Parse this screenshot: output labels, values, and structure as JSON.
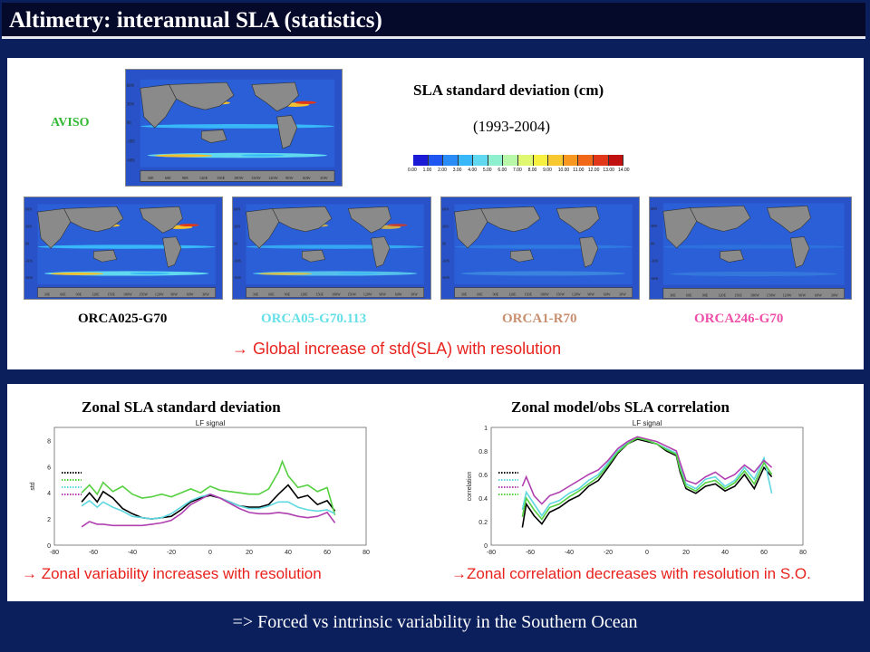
{
  "header": {
    "title": "Altimetry: interannual SLA (statistics)"
  },
  "top_panel": {
    "aviso_label": "AVISO",
    "map_title": "SLA standard deviation (cm)",
    "period": "(1993-2004)",
    "colorbar_ticks": [
      "0.00",
      "1.00",
      "2.00",
      "3.00",
      "4.00",
      "5.00",
      "6.00",
      "7.00",
      "8.00",
      "9.00",
      "10.00",
      "11.00",
      "12.00",
      "13.00",
      "14.00"
    ],
    "colorbar_colors": [
      "#1b1bd6",
      "#1f55f0",
      "#2a8cf6",
      "#38b8f8",
      "#5fd8f0",
      "#8ff0d0",
      "#b8f8a8",
      "#e0f870",
      "#f8f040",
      "#f8c830",
      "#f89820",
      "#f06818",
      "#e03818",
      "#c01010"
    ],
    "lat_ticks": [
      "60N",
      "30N",
      "0S",
      "-30S",
      "-60S"
    ],
    "lon_ticks": [
      "30E",
      "60E",
      "90E",
      "120E",
      "150E",
      "180W",
      "150W",
      "120W",
      "90W",
      "60W",
      "30W"
    ],
    "models": [
      {
        "name": "ORCA025-G70",
        "color": "#000000"
      },
      {
        "name": "ORCA05-G70.113",
        "color": "#66e0e8"
      },
      {
        "name": "ORCA1-R70",
        "color": "#c89070"
      },
      {
        "name": "ORCA246-G70",
        "color": "#ee4fa8"
      }
    ],
    "conclusion": "→ Global increase of std(SLA) with resolution"
  },
  "bottom_panel": {
    "left_title": "Zonal SLA standard deviation",
    "right_title": "Zonal model/obs SLA correlation",
    "left_conclusion": "→ Zonal variability increases with resolution",
    "right_conclusion": "→Zonal correlation decreases with resolution in S.O."
  },
  "footer": {
    "text": "=> Forced vs intrinsic variability in the Southern Ocean"
  },
  "chart_data": [
    {
      "type": "line",
      "title": "LF signal",
      "xlabel": "",
      "ylabel": "std",
      "xlim": [
        -80,
        80
      ],
      "ylim": [
        0,
        9
      ],
      "xticks": [
        -80,
        -60,
        -40,
        -20,
        0,
        20,
        40,
        60,
        80
      ],
      "yticks": [
        0,
        2,
        4,
        6,
        8
      ],
      "series_colors": [
        "#000000",
        "#55d040",
        "#5fd8e0",
        "#b040b0"
      ],
      "series": [
        {
          "x": [
            -66,
            -62,
            -58,
            -55,
            -50,
            -45,
            -40,
            -35,
            -30,
            -25,
            -20,
            -15,
            -10,
            -5,
            0,
            5,
            10,
            15,
            20,
            25,
            30,
            35,
            40,
            45,
            50,
            55,
            60,
            64
          ],
          "values": [
            3.3,
            4.0,
            3.3,
            4.1,
            3.6,
            2.8,
            2.4,
            2.1,
            2.0,
            2.1,
            2.2,
            2.7,
            3.3,
            3.6,
            3.8,
            3.6,
            3.3,
            3.0,
            2.9,
            2.9,
            3.1,
            3.9,
            4.6,
            3.6,
            3.8,
            3.1,
            3.4,
            2.6
          ]
        },
        {
          "x": [
            -66,
            -62,
            -58,
            -55,
            -50,
            -45,
            -40,
            -35,
            -30,
            -25,
            -20,
            -15,
            -10,
            -5,
            0,
            5,
            10,
            15,
            20,
            25,
            30,
            35,
            37,
            40,
            45,
            50,
            55,
            60,
            64
          ],
          "values": [
            4.0,
            4.6,
            3.9,
            4.8,
            4.1,
            4.5,
            3.9,
            3.6,
            3.7,
            3.9,
            3.7,
            4.0,
            4.3,
            4.0,
            4.5,
            4.2,
            4.1,
            4.0,
            3.9,
            3.9,
            4.3,
            5.6,
            6.4,
            5.3,
            4.4,
            4.6,
            4.1,
            4.4,
            2.3
          ]
        },
        {
          "x": [
            -66,
            -62,
            -58,
            -55,
            -50,
            -45,
            -40,
            -35,
            -30,
            -25,
            -20,
            -15,
            -10,
            -5,
            0,
            5,
            10,
            15,
            20,
            25,
            30,
            35,
            40,
            45,
            50,
            55,
            60,
            64
          ],
          "values": [
            3.0,
            3.4,
            2.9,
            3.3,
            2.9,
            2.6,
            2.2,
            2.1,
            2.0,
            2.1,
            2.4,
            2.9,
            3.4,
            3.7,
            3.9,
            3.6,
            3.3,
            3.0,
            2.8,
            2.8,
            3.0,
            3.3,
            3.3,
            2.9,
            2.7,
            2.6,
            2.7,
            2.4
          ]
        },
        {
          "x": [
            -66,
            -62,
            -58,
            -55,
            -50,
            -45,
            -40,
            -35,
            -30,
            -25,
            -20,
            -15,
            -10,
            -5,
            0,
            5,
            10,
            15,
            20,
            25,
            30,
            35,
            40,
            45,
            50,
            55,
            60,
            64
          ],
          "values": [
            1.4,
            1.8,
            1.6,
            1.6,
            1.5,
            1.5,
            1.5,
            1.5,
            1.6,
            1.7,
            1.9,
            2.4,
            3.1,
            3.5,
            3.9,
            3.6,
            3.2,
            2.8,
            2.5,
            2.4,
            2.4,
            2.5,
            2.4,
            2.2,
            2.1,
            2.2,
            2.5,
            1.7
          ]
        }
      ]
    },
    {
      "type": "line",
      "title": "LF signal",
      "xlabel": "",
      "ylabel": "correlation",
      "xlim": [
        -80,
        80
      ],
      "ylim": [
        0,
        1
      ],
      "xticks": [
        -80,
        -60,
        -40,
        -20,
        0,
        20,
        40,
        60,
        80
      ],
      "yticks": [
        0,
        0.2,
        0.4,
        0.6,
        0.8,
        1
      ],
      "series_colors": [
        "#000000",
        "#5fd8e0",
        "#b040b0",
        "#55d040"
      ],
      "series": [
        {
          "x": [
            -64,
            -62,
            -58,
            -54,
            -50,
            -45,
            -40,
            -35,
            -30,
            -25,
            -20,
            -15,
            -10,
            -5,
            0,
            5,
            10,
            15,
            17,
            20,
            25,
            30,
            35,
            40,
            45,
            50,
            55,
            60,
            64
          ],
          "values": [
            0.15,
            0.35,
            0.25,
            0.18,
            0.28,
            0.32,
            0.38,
            0.42,
            0.5,
            0.55,
            0.66,
            0.78,
            0.86,
            0.9,
            0.88,
            0.86,
            0.8,
            0.76,
            0.62,
            0.48,
            0.44,
            0.5,
            0.52,
            0.46,
            0.5,
            0.6,
            0.48,
            0.66,
            0.58
          ]
        },
        {
          "x": [
            -64,
            -62,
            -58,
            -54,
            -50,
            -45,
            -40,
            -35,
            -30,
            -25,
            -20,
            -15,
            -10,
            -5,
            0,
            5,
            10,
            15,
            17,
            20,
            25,
            30,
            35,
            40,
            45,
            50,
            55,
            60,
            64
          ],
          "values": [
            0.3,
            0.45,
            0.35,
            0.25,
            0.35,
            0.38,
            0.44,
            0.48,
            0.55,
            0.6,
            0.7,
            0.8,
            0.87,
            0.91,
            0.89,
            0.86,
            0.82,
            0.78,
            0.66,
            0.52,
            0.48,
            0.56,
            0.58,
            0.5,
            0.55,
            0.66,
            0.56,
            0.74,
            0.44
          ]
        },
        {
          "x": [
            -64,
            -62,
            -58,
            -54,
            -50,
            -45,
            -40,
            -35,
            -30,
            -25,
            -20,
            -15,
            -10,
            -5,
            0,
            5,
            10,
            15,
            17,
            20,
            25,
            30,
            35,
            40,
            45,
            50,
            55,
            60,
            64
          ],
          "values": [
            0.5,
            0.58,
            0.42,
            0.35,
            0.42,
            0.45,
            0.5,
            0.55,
            0.6,
            0.64,
            0.72,
            0.82,
            0.88,
            0.92,
            0.9,
            0.88,
            0.84,
            0.8,
            0.7,
            0.55,
            0.52,
            0.58,
            0.62,
            0.56,
            0.6,
            0.68,
            0.62,
            0.72,
            0.66
          ]
        },
        {
          "x": [
            -64,
            -62,
            -58,
            -54,
            -50,
            -45,
            -40,
            -35,
            -30,
            -25,
            -20,
            -15,
            -10,
            -5,
            0,
            5,
            10,
            15,
            17,
            20,
            25,
            30,
            35,
            40,
            45,
            50,
            55,
            60,
            64
          ],
          "values": [
            0.24,
            0.4,
            0.3,
            0.22,
            0.32,
            0.35,
            0.41,
            0.46,
            0.52,
            0.58,
            0.68,
            0.79,
            0.86,
            0.91,
            0.89,
            0.86,
            0.81,
            0.77,
            0.64,
            0.5,
            0.46,
            0.53,
            0.55,
            0.48,
            0.53,
            0.63,
            0.52,
            0.7,
            0.6
          ]
        }
      ]
    }
  ]
}
